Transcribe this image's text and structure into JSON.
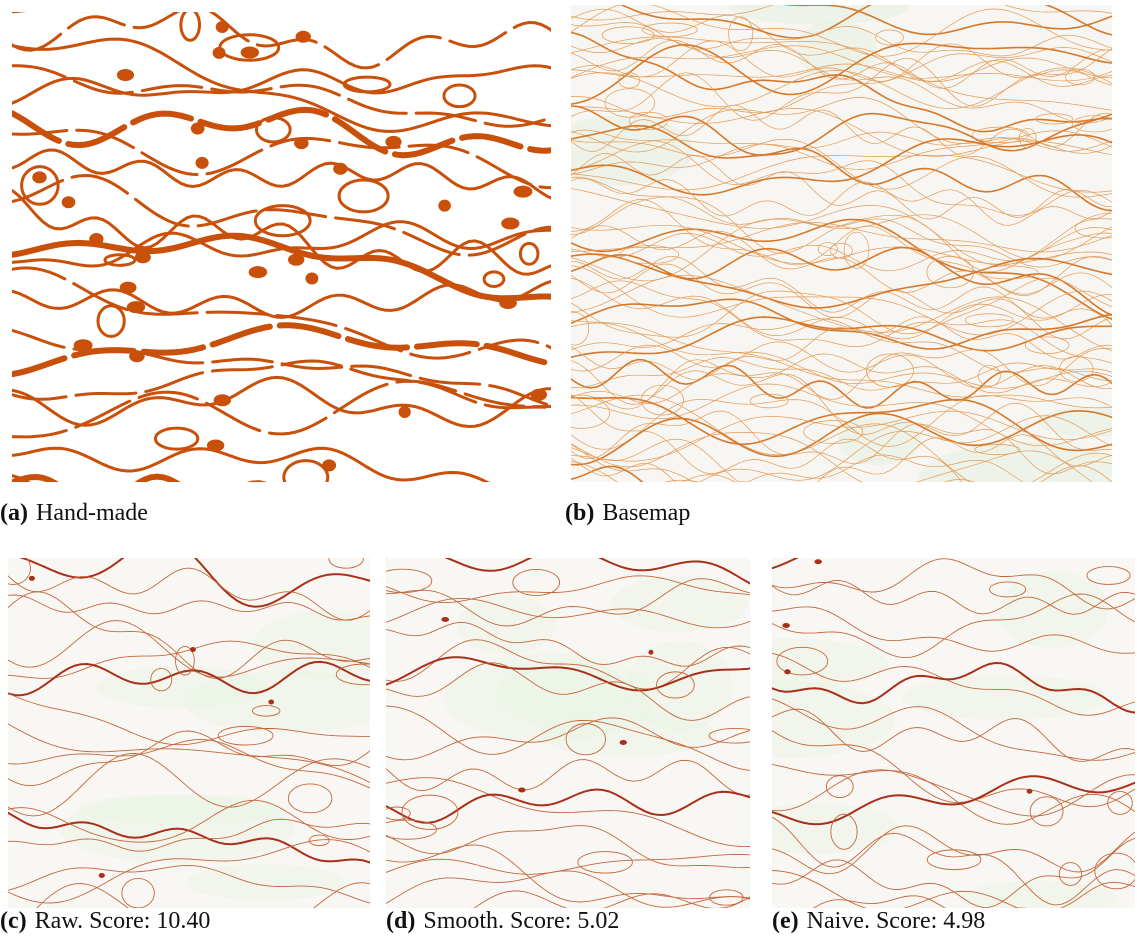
{
  "figure": {
    "panels": [
      {
        "label": "(a)",
        "text": "Hand-made"
      },
      {
        "label": "(b)",
        "text": "Basemap"
      },
      {
        "label": "(c)",
        "text": "Raw. Score: 10.40"
      },
      {
        "label": "(d)",
        "text": "Smooth. Score: 5.02"
      },
      {
        "label": "(e)",
        "text": "Naive. Score: 4.98"
      }
    ]
  }
}
